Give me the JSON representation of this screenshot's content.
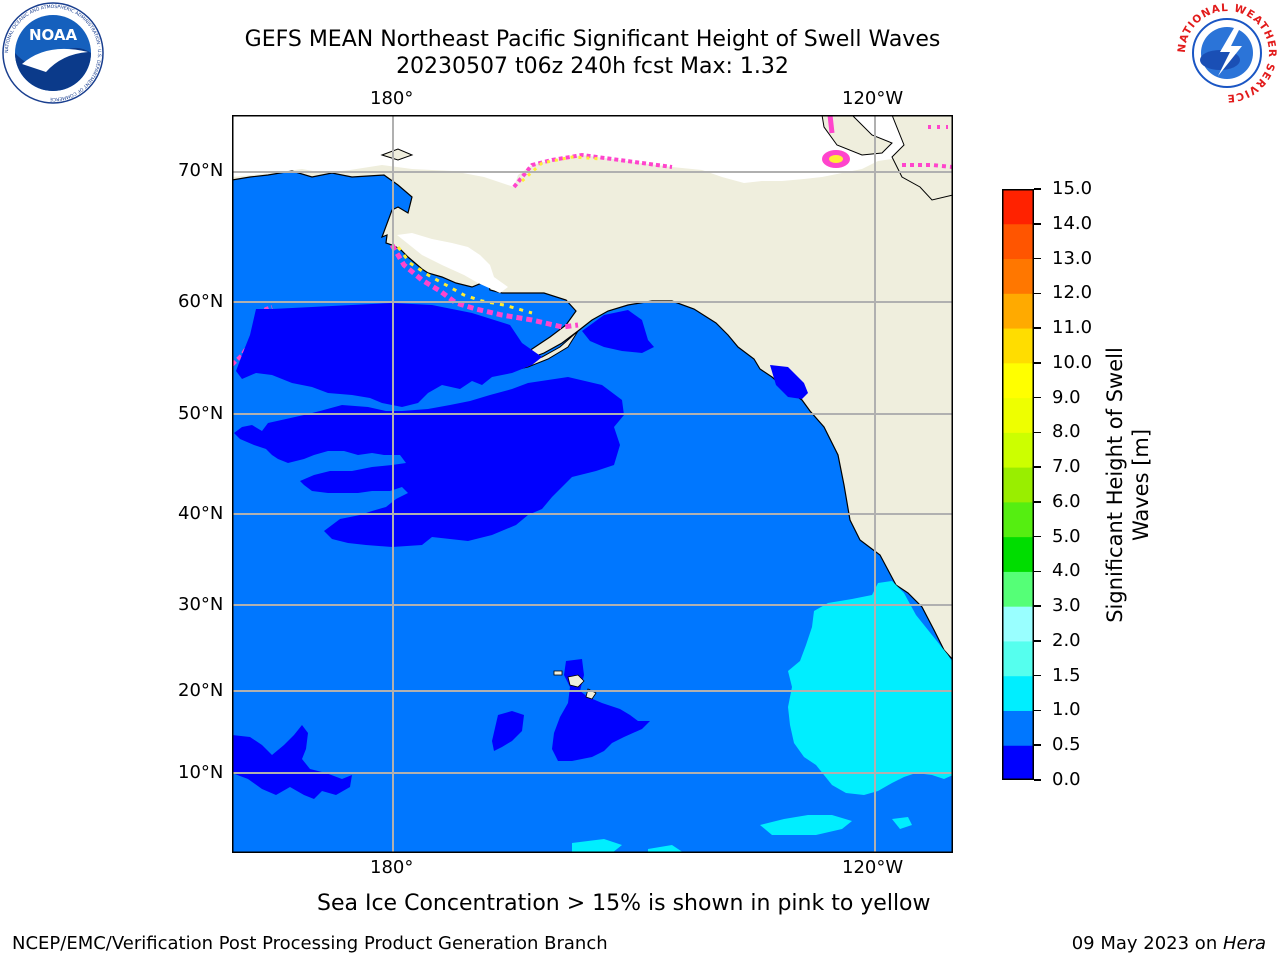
{
  "header": {
    "title_line1": "GEFS MEAN Northeast Pacific Significant Height of Swell Waves",
    "title_line2": "20230507 t06z 240h fcst   Max: 1.32"
  },
  "logos": {
    "left": {
      "text": "NOAA",
      "ring_text": "NATIONAL OCEANIC AND ATMOSPHERIC ADMINISTRATION · U.S. DEPARTMENT OF COMMERCE"
    },
    "right": {
      "ring_text": "NATIONAL WEATHER SERVICE"
    }
  },
  "map": {
    "lon_labels": [
      "180°",
      "120°W"
    ],
    "lat_labels": [
      "70°N",
      "60°N",
      "50°N",
      "40°N",
      "30°N",
      "20°N",
      "10°N"
    ],
    "colors": {
      "land": "#efeedd",
      "ice_free_white": "#ffffff",
      "ice_pink": "#ff44cc",
      "ice_yellow": "#ffee33"
    }
  },
  "colorbar": {
    "label_line1": "Significant Height of Swell",
    "label_line2": "Waves [m]",
    "ticks": [
      "0.0",
      "0.5",
      "1.0",
      "1.5",
      "2.0",
      "3.0",
      "4.0",
      "5.0",
      "6.0",
      "7.0",
      "8.0",
      "9.0",
      "10.0",
      "11.0",
      "12.0",
      "13.0",
      "14.0",
      "15.0"
    ],
    "colors": [
      "#0000ff",
      "#0077ff",
      "#00eeff",
      "#55ffee",
      "#99ffff",
      "#55ff77",
      "#00dd00",
      "#55ee11",
      "#99ee00",
      "#ccff00",
      "#eeff00",
      "#ffff00",
      "#ffdd00",
      "#ffaa00",
      "#ff7700",
      "#ff5500",
      "#ff2200"
    ]
  },
  "notes": {
    "sea_ice": "Sea Ice Concentration > 15% is shown in pink to yellow"
  },
  "footer": {
    "left": "NCEP/EMC/Verification Post Processing Product Generation Branch",
    "date": "09 May 2023 on ",
    "machine": "Hera"
  }
}
